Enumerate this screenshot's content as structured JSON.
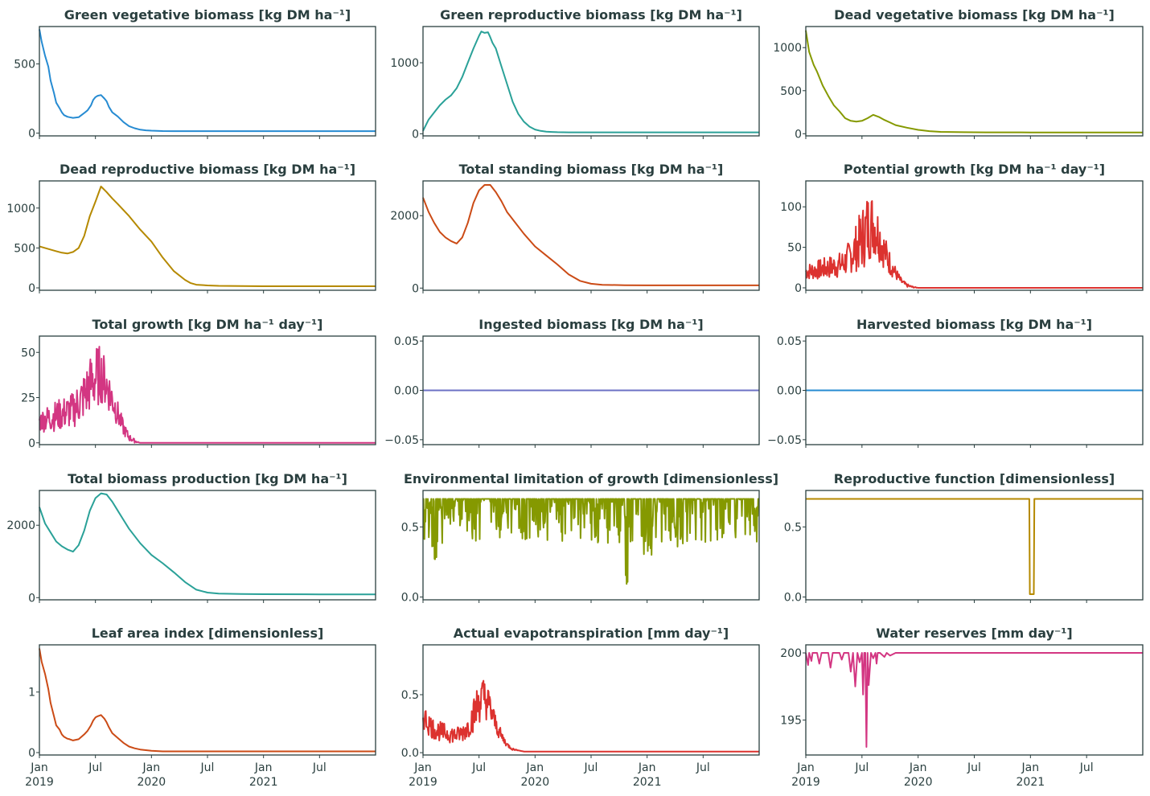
{
  "chart_data": [
    {
      "type": "line",
      "title": "Green vegetative biomass [kg DM ha⁻¹]",
      "color": "#268bd2",
      "ylim": [
        -20,
        770
      ],
      "yticks": [
        0,
        500
      ],
      "ytick_labels": [
        "0",
        "500"
      ],
      "x": [
        0,
        0.02,
        0.05,
        0.08,
        0.1,
        0.13,
        0.15,
        0.18,
        0.2,
        0.22,
        0.25,
        0.27,
        0.3,
        0.35,
        0.4,
        0.43,
        0.46,
        0.48,
        0.5,
        0.52,
        0.55,
        0.58,
        0.6,
        0.62,
        0.65,
        0.7,
        0.75,
        0.8,
        0.85,
        0.9,
        0.95,
        1.0,
        1.1,
        1.2,
        1.3,
        1.5,
        1.7,
        2.0,
        2.5,
        3.0
      ],
      "y": [
        750,
        660,
        560,
        480,
        380,
        290,
        220,
        180,
        150,
        130,
        118,
        115,
        110,
        115,
        145,
        165,
        200,
        240,
        260,
        270,
        275,
        250,
        230,
        190,
        150,
        120,
        80,
        50,
        35,
        25,
        20,
        18,
        15,
        14,
        14,
        14,
        14,
        14,
        14,
        14
      ]
    },
    {
      "type": "line",
      "title": "Green reproductive biomass [kg DM ha⁻¹]",
      "color": "#2aa198",
      "ylim": [
        -30,
        1510
      ],
      "yticks": [
        0,
        1000
      ],
      "ytick_labels": [
        "0",
        "1000"
      ],
      "x": [
        0,
        0.05,
        0.1,
        0.15,
        0.2,
        0.25,
        0.3,
        0.35,
        0.4,
        0.45,
        0.5,
        0.52,
        0.55,
        0.58,
        0.6,
        0.62,
        0.65,
        0.7,
        0.75,
        0.8,
        0.85,
        0.9,
        0.95,
        1.0,
        1.05,
        1.1,
        1.15,
        1.2,
        1.3,
        1.5,
        1.7,
        2.0,
        2.5,
        3.0
      ],
      "y": [
        40,
        200,
        300,
        400,
        480,
        540,
        640,
        800,
        1000,
        1200,
        1380,
        1440,
        1420,
        1430,
        1360,
        1280,
        1200,
        950,
        700,
        450,
        280,
        170,
        100,
        60,
        40,
        30,
        25,
        22,
        20,
        20,
        20,
        20,
        20,
        20
      ]
    },
    {
      "type": "line",
      "title": "Dead vegetative biomass [kg DM ha⁻¹]",
      "color": "#859900",
      "ylim": [
        -25,
        1245
      ],
      "yticks": [
        0,
        500,
        1000
      ],
      "ytick_labels": [
        "0",
        "500",
        "1000"
      ],
      "x": [
        0,
        0.03,
        0.07,
        0.1,
        0.15,
        0.2,
        0.25,
        0.3,
        0.35,
        0.4,
        0.45,
        0.5,
        0.55,
        0.6,
        0.65,
        0.7,
        0.75,
        0.8,
        0.9,
        1.0,
        1.1,
        1.2,
        1.4,
        1.6,
        2.0,
        2.5,
        3.0
      ],
      "y": [
        1200,
        950,
        800,
        720,
        560,
        440,
        330,
        260,
        180,
        150,
        140,
        150,
        180,
        220,
        195,
        160,
        130,
        100,
        70,
        45,
        30,
        22,
        18,
        16,
        15,
        15,
        15
      ]
    },
    {
      "type": "line",
      "title": "Dead reproductive biomass [kg DM ha⁻¹]",
      "color": "#b58900",
      "ylim": [
        -30,
        1340
      ],
      "yticks": [
        0,
        500,
        1000
      ],
      "ytick_labels": [
        "0",
        "500",
        "1000"
      ],
      "x": [
        0,
        0.1,
        0.15,
        0.2,
        0.25,
        0.3,
        0.35,
        0.4,
        0.45,
        0.5,
        0.55,
        0.6,
        0.65,
        0.7,
        0.8,
        0.9,
        1.0,
        1.1,
        1.2,
        1.3,
        1.35,
        1.4,
        1.5,
        1.6,
        1.8,
        2.0,
        2.5,
        3.0
      ],
      "y": [
        520,
        480,
        460,
        440,
        430,
        450,
        500,
        650,
        900,
        1080,
        1270,
        1200,
        1120,
        1050,
        900,
        730,
        580,
        380,
        210,
        100,
        60,
        40,
        30,
        25,
        22,
        20,
        20,
        20
      ]
    },
    {
      "type": "line",
      "title": "Total standing biomass [kg DM ha⁻¹]",
      "color": "#cb4b16",
      "ylim": [
        -60,
        2960
      ],
      "yticks": [
        0,
        2000
      ],
      "ytick_labels": [
        "0",
        "2000"
      ],
      "x": [
        0,
        0.05,
        0.1,
        0.15,
        0.2,
        0.25,
        0.3,
        0.35,
        0.4,
        0.45,
        0.5,
        0.55,
        0.6,
        0.65,
        0.7,
        0.75,
        0.8,
        0.9,
        1.0,
        1.1,
        1.2,
        1.3,
        1.4,
        1.5,
        1.6,
        1.8,
        2.0,
        2.5,
        3.0
      ],
      "y": [
        2500,
        2100,
        1800,
        1550,
        1400,
        1300,
        1230,
        1400,
        1800,
        2350,
        2700,
        2850,
        2850,
        2650,
        2400,
        2100,
        1900,
        1500,
        1150,
        900,
        650,
        380,
        200,
        120,
        90,
        80,
        75,
        75,
        75
      ]
    },
    {
      "type": "line",
      "title": "Potential growth [kg DM ha⁻¹ day⁻¹]",
      "color": "#dc322f",
      "ylim": [
        -3,
        132
      ],
      "yticks": [
        0,
        50,
        100
      ],
      "ytick_labels": [
        "0",
        "50",
        "100"
      ],
      "noisy": true,
      "x": [
        0,
        0.1,
        0.2,
        0.3,
        0.35,
        0.4,
        0.45,
        0.5,
        0.55,
        0.6,
        0.65,
        0.7,
        0.75,
        0.8,
        0.85,
        0.9,
        0.95,
        1.0,
        1.2,
        1.5,
        2.0,
        2.5,
        3.0
      ],
      "y": [
        20,
        22,
        25,
        28,
        32,
        40,
        50,
        60,
        75,
        80,
        65,
        45,
        30,
        18,
        8,
        3,
        1,
        0,
        0,
        0,
        0,
        0,
        0
      ],
      "amp": [
        10,
        12,
        14,
        16,
        18,
        22,
        30,
        40,
        45,
        40,
        32,
        22,
        15,
        8,
        4,
        2,
        1,
        0,
        0,
        0,
        0,
        0,
        0
      ]
    },
    {
      "type": "line",
      "title": "Total growth [kg DM ha⁻¹ day⁻¹]",
      "color": "#d33682",
      "ylim": [
        -1,
        59
      ],
      "yticks": [
        0,
        25,
        50
      ],
      "ytick_labels": [
        "0",
        "25",
        "50"
      ],
      "noisy": true,
      "x": [
        0,
        0.1,
        0.2,
        0.3,
        0.35,
        0.4,
        0.45,
        0.5,
        0.55,
        0.6,
        0.65,
        0.7,
        0.75,
        0.8,
        0.85,
        0.9,
        0.95,
        1.0,
        1.2,
        1.5,
        2.0,
        2.5,
        3.0
      ],
      "y": [
        12,
        14,
        16,
        18,
        22,
        26,
        32,
        36,
        38,
        32,
        24,
        16,
        8,
        3,
        1,
        0,
        0,
        0,
        0,
        0,
        0,
        0,
        0
      ],
      "amp": [
        6,
        8,
        9,
        10,
        12,
        14,
        16,
        18,
        16,
        13,
        10,
        7,
        4,
        2,
        1,
        0,
        0,
        0,
        0,
        0,
        0,
        0,
        0
      ]
    },
    {
      "type": "line",
      "title": "Ingested biomass [kg DM ha⁻¹]",
      "color": "#6c71c4",
      "ylim": [
        -0.055,
        0.055
      ],
      "yticks": [
        -0.05,
        0,
        0.05
      ],
      "ytick_labels": [
        "−0.05",
        "0.00",
        "0.05"
      ],
      "x": [
        0,
        3.0
      ],
      "y": [
        0,
        0
      ]
    },
    {
      "type": "line",
      "title": "Harvested biomass [kg DM ha⁻¹]",
      "color": "#268bd2",
      "ylim": [
        -0.055,
        0.055
      ],
      "yticks": [
        -0.05,
        0,
        0.05
      ],
      "ytick_labels": [
        "−0.05",
        "0.00",
        "0.05"
      ],
      "x": [
        0,
        3.0
      ],
      "y": [
        0,
        0
      ]
    },
    {
      "type": "line",
      "title": "Total biomass production [kg DM ha⁻¹]",
      "color": "#2aa198",
      "ylim": [
        -60,
        2960
      ],
      "yticks": [
        0,
        2000
      ],
      "ytick_labels": [
        "0",
        "2000"
      ],
      "x": [
        0,
        0.05,
        0.1,
        0.15,
        0.2,
        0.25,
        0.3,
        0.35,
        0.4,
        0.45,
        0.5,
        0.55,
        0.6,
        0.65,
        0.7,
        0.75,
        0.8,
        0.9,
        1.0,
        1.1,
        1.2,
        1.3,
        1.4,
        1.5,
        1.6,
        1.8,
        2.0,
        2.5,
        3.0
      ],
      "y": [
        2500,
        2050,
        1800,
        1550,
        1420,
        1330,
        1270,
        1450,
        1850,
        2400,
        2750,
        2880,
        2850,
        2650,
        2400,
        2150,
        1900,
        1500,
        1180,
        950,
        700,
        430,
        220,
        140,
        110,
        100,
        95,
        90,
        90
      ]
    },
    {
      "type": "line",
      "title": "Environmental limitation of growth [dimensionless]",
      "color": "#859900",
      "ylim": [
        -0.02,
        0.76
      ],
      "yticks": [
        0,
        0.5
      ],
      "ytick_labels": [
        "0.0",
        "0.5"
      ],
      "env": true,
      "x": [
        0,
        3.0
      ],
      "y": [
        0.7,
        0.7
      ]
    },
    {
      "type": "line",
      "title": "Reproductive function [dimensionless]",
      "color": "#b58900",
      "ylim": [
        -0.02,
        0.76
      ],
      "yticks": [
        0,
        0.5
      ],
      "ytick_labels": [
        "0.0",
        "0.5"
      ],
      "x": [
        0,
        1.99,
        1.995,
        2.03,
        2.035,
        3.0
      ],
      "y": [
        0.7,
        0.7,
        0.02,
        0.02,
        0.7,
        0.7
      ]
    },
    {
      "type": "line",
      "title": "Leaf area index [dimensionless]",
      "color": "#cb4b16",
      "ylim": [
        -0.04,
        1.78
      ],
      "yticks": [
        0,
        1
      ],
      "ytick_labels": [
        "0",
        "1"
      ],
      "x": [
        0,
        0.02,
        0.05,
        0.08,
        0.1,
        0.13,
        0.15,
        0.18,
        0.2,
        0.22,
        0.25,
        0.27,
        0.3,
        0.35,
        0.4,
        0.43,
        0.46,
        0.48,
        0.5,
        0.52,
        0.55,
        0.58,
        0.6,
        0.62,
        0.65,
        0.7,
        0.75,
        0.8,
        0.85,
        0.9,
        0.95,
        1.0,
        1.1,
        1.2,
        1.3,
        1.5,
        1.7,
        2.0,
        2.5,
        3.0
      ],
      "y": [
        1.72,
        1.5,
        1.3,
        1.05,
        0.82,
        0.6,
        0.45,
        0.38,
        0.3,
        0.26,
        0.23,
        0.22,
        0.2,
        0.22,
        0.3,
        0.36,
        0.45,
        0.53,
        0.58,
        0.6,
        0.62,
        0.56,
        0.5,
        0.42,
        0.32,
        0.24,
        0.16,
        0.1,
        0.07,
        0.05,
        0.04,
        0.03,
        0.02,
        0.02,
        0.02,
        0.02,
        0.02,
        0.02,
        0.02,
        0.02
      ]
    },
    {
      "type": "line",
      "title": "Actual evapotranspiration [mm day⁻¹]",
      "color": "#dc322f",
      "ylim": [
        -0.02,
        0.93
      ],
      "yticks": [
        0,
        0.5
      ],
      "ytick_labels": [
        "0.0",
        "0.5"
      ],
      "noisy": true,
      "x": [
        0,
        0.05,
        0.1,
        0.2,
        0.3,
        0.35,
        0.4,
        0.45,
        0.5,
        0.55,
        0.6,
        0.65,
        0.7,
        0.75,
        0.8,
        0.85,
        0.9,
        1.0,
        1.2,
        1.5,
        2.0,
        2.5,
        3.0
      ],
      "y": [
        0.32,
        0.25,
        0.2,
        0.17,
        0.15,
        0.17,
        0.22,
        0.32,
        0.45,
        0.48,
        0.38,
        0.24,
        0.14,
        0.07,
        0.03,
        0.02,
        0.01,
        0.01,
        0.01,
        0.01,
        0.01,
        0.01,
        0.01
      ],
      "amp": [
        0.12,
        0.1,
        0.09,
        0.08,
        0.07,
        0.08,
        0.1,
        0.14,
        0.2,
        0.18,
        0.14,
        0.08,
        0.05,
        0.02,
        0.01,
        0.0,
        0.0,
        0,
        0,
        0,
        0,
        0,
        0
      ]
    },
    {
      "type": "line",
      "title": "Water reserves [mm day⁻¹]",
      "color": "#d33682",
      "ylim": [
        192.4,
        200.6
      ],
      "yticks": [
        195,
        200
      ],
      "ytick_labels": [
        "195",
        "200"
      ],
      "x": [
        0,
        0.02,
        0.03,
        0.05,
        0.06,
        0.1,
        0.12,
        0.14,
        0.2,
        0.22,
        0.24,
        0.3,
        0.32,
        0.34,
        0.38,
        0.4,
        0.42,
        0.44,
        0.46,
        0.48,
        0.5,
        0.51,
        0.52,
        0.53,
        0.54,
        0.55,
        0.56,
        0.58,
        0.6,
        0.62,
        0.63,
        0.64,
        0.66,
        0.7,
        0.72,
        0.75,
        0.8,
        0.85,
        0.9,
        1.0,
        1.5,
        2.0,
        2.5,
        3.0
      ],
      "y": [
        200,
        199.1,
        200,
        199.4,
        200,
        200,
        199.2,
        200,
        200,
        198.9,
        200,
        200,
        199.5,
        200,
        200,
        198.6,
        200,
        197.5,
        200,
        199.3,
        200,
        196.9,
        200,
        200,
        193,
        200,
        197.6,
        200,
        199.6,
        200,
        199.2,
        200,
        200,
        199.7,
        200,
        199.8,
        200,
        200,
        200,
        200,
        200,
        200,
        200,
        200
      ]
    }
  ],
  "x_ticks": [
    {
      "value": 0,
      "month": "Jan",
      "year": "2019"
    },
    {
      "value": 0.5,
      "month": "Jul",
      "year": ""
    },
    {
      "value": 1,
      "month": "Jan",
      "year": "2020"
    },
    {
      "value": 1.5,
      "month": "Jul",
      "year": ""
    },
    {
      "value": 2,
      "month": "Jan",
      "year": "2021"
    },
    {
      "value": 2.5,
      "month": "Jul",
      "year": ""
    }
  ],
  "xlim": [
    0,
    3.0
  ],
  "colors": {
    "frame": "#2a3f3f",
    "text": "#2a3f3f"
  }
}
